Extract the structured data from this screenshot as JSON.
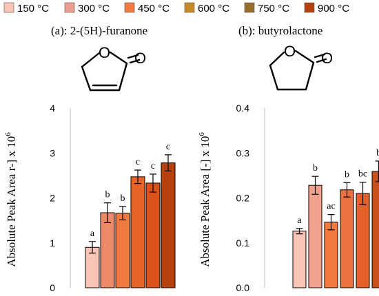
{
  "colors": {
    "s150": "#f9c4b6",
    "s300": "#eba08f",
    "s450": "#f07a3f",
    "s600": "#c48a2a",
    "s750": "#9a6d2b",
    "s900": "#b7410e"
  },
  "legend": {
    "items": [
      {
        "label": "150 °C",
        "color_key": "s150",
        "swatch": "#f9c4b6"
      },
      {
        "label": "300 °C",
        "color_key": "s300",
        "swatch": "#eba08f"
      },
      {
        "label": "450 °C",
        "color_key": "s450",
        "swatch": "#f07a3f"
      },
      {
        "label": "600 °C",
        "color_key": "s600",
        "swatch": "#c48a2a"
      },
      {
        "label": "750 °C",
        "color_key": "s750",
        "swatch": "#9a6d2b"
      },
      {
        "label": "900 °C",
        "color_key": "s900",
        "swatch": "#b7410e"
      }
    ]
  },
  "chart_data": [
    {
      "type": "bar",
      "title": "(a): 2-(5H)-furanone",
      "ylabel": "Absolute Peak Area r-] x 10",
      "ylabel_sup": "6",
      "ylim": [
        0,
        4
      ],
      "yticks": [
        "0",
        "1",
        "2",
        "3",
        "4"
      ],
      "ytick_values": [
        0,
        1,
        2,
        3,
        4
      ],
      "grid": false,
      "molecule": "2(5H)-furanone",
      "bar_fills": [
        "#f9c4b6",
        "#ed8a6a",
        "#f07a3f",
        "#e8652a",
        "#d9541c",
        "#b7410e"
      ],
      "series": [
        {
          "name": "150 °C",
          "value": 0.9,
          "error": 0.13,
          "label": "a"
        },
        {
          "name": "300 °C",
          "value": 1.67,
          "error": 0.22,
          "label": "b"
        },
        {
          "name": "450 °C",
          "value": 1.66,
          "error": 0.15,
          "label": "b"
        },
        {
          "name": "600 °C",
          "value": 2.47,
          "error": 0.15,
          "label": "c"
        },
        {
          "name": "750 °C",
          "value": 2.33,
          "error": 0.2,
          "label": "c"
        },
        {
          "name": "900 °C",
          "value": 2.78,
          "error": 0.18,
          "label": "c"
        }
      ]
    },
    {
      "type": "bar",
      "title": "(b): butyrolactone",
      "ylabel": "Absolute Peak Area [-] x 10",
      "ylabel_sup": "6",
      "ylim": [
        0,
        0.4
      ],
      "yticks": [
        "0.0",
        "0.1",
        "0.2",
        "0.3",
        "0.4"
      ],
      "ytick_values": [
        0,
        0.1,
        0.2,
        0.3,
        0.4
      ],
      "grid": false,
      "molecule": "gamma-butyrolactone",
      "bar_fills": [
        "#f9c4b6",
        "#f0a48f",
        "#f07a3f",
        "#ea7240",
        "#e2622a",
        "#c8501a"
      ],
      "series": [
        {
          "name": "150 °C",
          "value": 0.126,
          "error": 0.006,
          "label": "a"
        },
        {
          "name": "300 °C",
          "value": 0.228,
          "error": 0.02,
          "label": "b"
        },
        {
          "name": "450 °C",
          "value": 0.146,
          "error": 0.017,
          "label": "ac"
        },
        {
          "name": "600 °C",
          "value": 0.218,
          "error": 0.016,
          "label": "b"
        },
        {
          "name": "750 °C",
          "value": 0.21,
          "error": 0.025,
          "label": "bc"
        },
        {
          "name": "900 °C",
          "value": 0.259,
          "error": 0.023,
          "label": "b"
        }
      ]
    }
  ]
}
